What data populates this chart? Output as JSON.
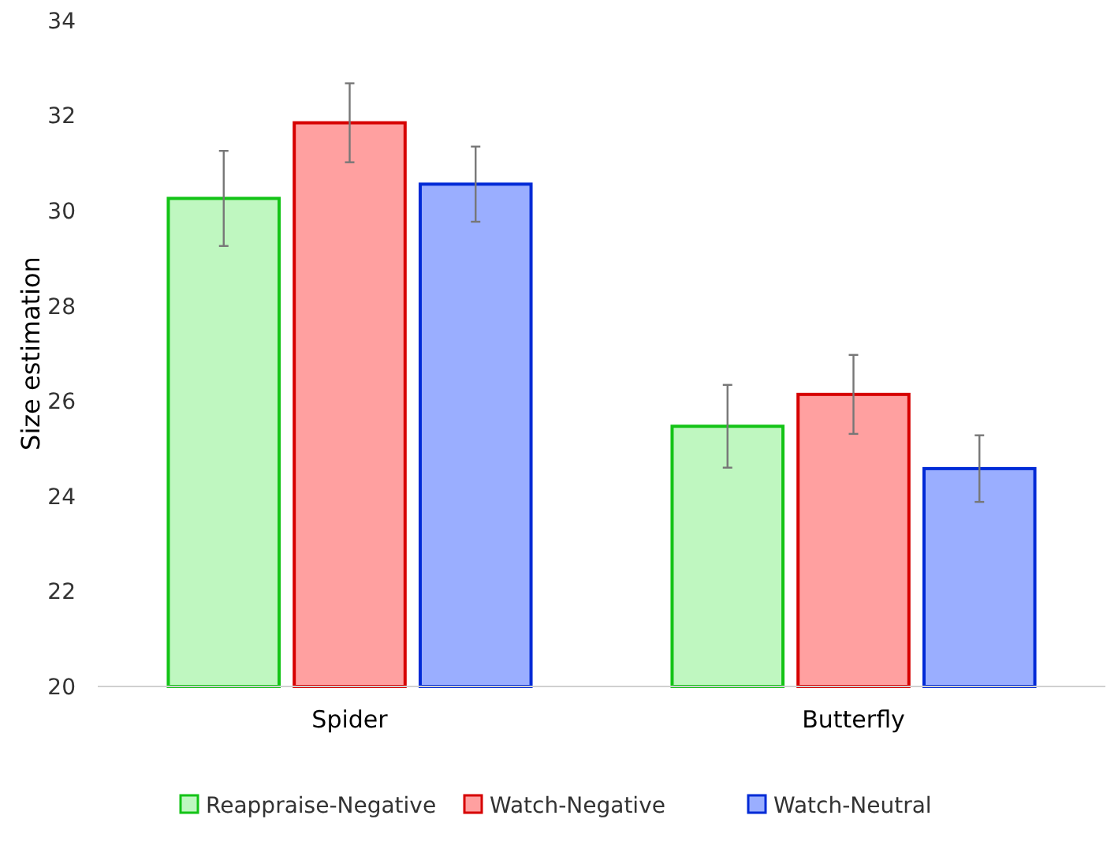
{
  "chart_data": {
    "type": "bar",
    "ylabel": "Size estimation",
    "categories": [
      "Spider",
      "Butterfly"
    ],
    "series": [
      {
        "name": "Reappraise-Negative",
        "color": "#bff7c0",
        "values": [
          30.26,
          25.47
        ],
        "errors": [
          1.0,
          0.87
        ]
      },
      {
        "name": "Watch-Negative",
        "color": "#ffa0a0",
        "values": [
          31.85,
          26.14
        ],
        "errors": [
          0.83,
          0.83
        ]
      },
      {
        "name": "Watch-Neutral",
        "color": "#9aaeff",
        "values": [
          30.56,
          24.58
        ],
        "errors": [
          0.79,
          0.7
        ]
      }
    ],
    "ylim": [
      20,
      34
    ],
    "yticks": [
      20,
      22,
      24,
      26,
      28,
      30,
      32,
      34
    ],
    "grid": false,
    "legend": "bottom"
  }
}
